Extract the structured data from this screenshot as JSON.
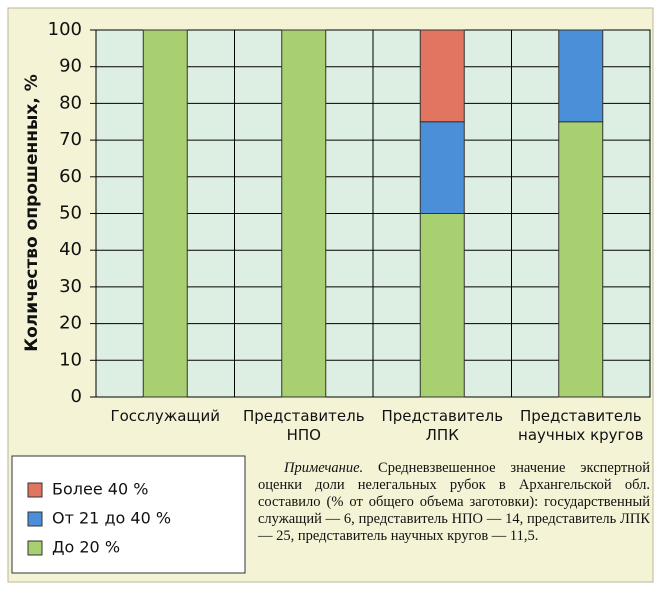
{
  "chart_data": {
    "type": "stacked_bar",
    "y_label": "Количество опрошенных, %",
    "categories": [
      "Госслужащий",
      "Представитель НПО",
      "Представитель ЛПК",
      "Представитель научных кругов"
    ],
    "series": [
      {
        "name": "До 20 %",
        "color": "#a8cf70",
        "values": [
          100,
          100,
          50,
          75
        ]
      },
      {
        "name": "От 21 до 40 %",
        "color": "#4a8fd8",
        "values": [
          0,
          0,
          25,
          25
        ]
      },
      {
        "name": "Более 40 %",
        "color": "#e27462",
        "values": [
          0,
          0,
          25,
          0
        ]
      }
    ],
    "ylim": [
      0,
      100
    ],
    "yticks": [
      0,
      10,
      20,
      30,
      40,
      50,
      60,
      70,
      80,
      90,
      100
    ],
    "grid": true,
    "note_label": "Примечание.",
    "note": "Средневзвешенное значение экспертной оценки доли нелегальных рубок в Архангельской обл. составило (% от общего объема заготовки): государственный служащий — 6, представитель НПО — 14, представитель ЛПК — 25, представитель научных кругов — 11,5."
  }
}
